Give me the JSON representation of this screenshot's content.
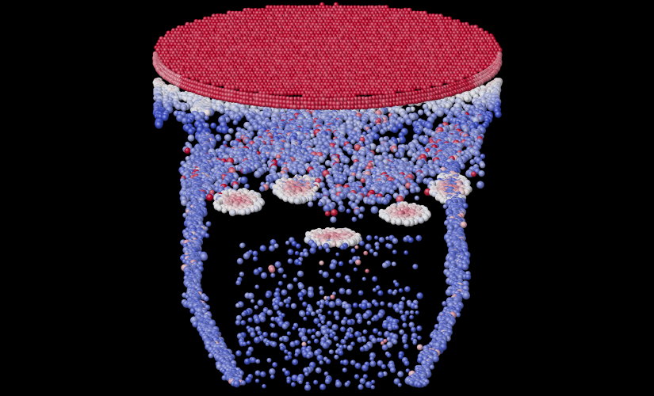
{
  "scene": {
    "subject": "particle-simulation-render",
    "background_color": "#000000",
    "colormap": {
      "name": "coolwarm",
      "low": "#3b4cc0",
      "mid": "#dddddd",
      "high": "#b40426"
    },
    "particle_style": "shaded-spheres"
  }
}
